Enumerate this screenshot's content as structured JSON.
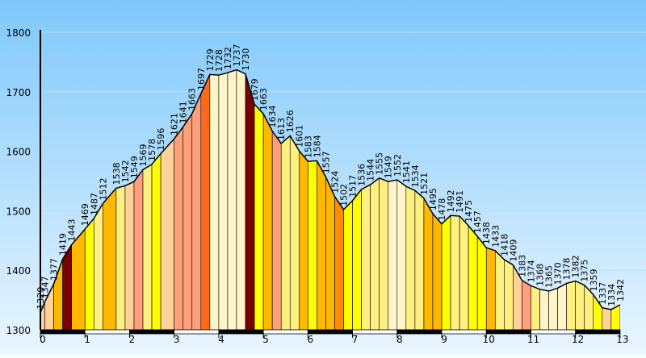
{
  "chart_data": {
    "type": "area",
    "title": "",
    "xlabel": "",
    "ylabel": "",
    "xlim": [
      0,
      13.4
    ],
    "ylim": [
      1300,
      1800
    ],
    "y_ticks": [
      "1300",
      "1400",
      "1500",
      "1600",
      "1700",
      "1800"
    ],
    "x_ticks": [
      "0",
      "1",
      "2",
      "3",
      "4",
      "5",
      "6",
      "7",
      "8",
      "9",
      "10",
      "11",
      "12",
      "13"
    ],
    "grid": true,
    "colors": {
      "background_top": "#7fc8fa",
      "background_bottom": "#eaf6ff",
      "gridline": "#b9dff5",
      "outline": "#000000",
      "palette": [
        "#ffd29a",
        "#ffb800",
        "#ff8c00",
        "#ffff00",
        "#fff080",
        "#fff5c8",
        "#ffa07a",
        "#ff6a1a",
        "#7a0000"
      ]
    },
    "points": [
      {
        "x": 0.0,
        "y": 1329,
        "label": "1329"
      },
      {
        "x": 0.1,
        "y": 1347,
        "label": "1347"
      },
      {
        "x": 0.3,
        "y": 1377,
        "label": "1377"
      },
      {
        "x": 0.5,
        "y": 1419,
        "label": "1419"
      },
      {
        "x": 0.7,
        "y": 1443,
        "label": "1443"
      },
      {
        "x": 1.0,
        "y": 1469,
        "label": "1469"
      },
      {
        "x": 1.2,
        "y": 1487,
        "label": "1487"
      },
      {
        "x": 1.4,
        "y": 1512,
        "label": "1512"
      },
      {
        "x": 1.7,
        "y": 1538,
        "label": "1538"
      },
      {
        "x": 1.9,
        "y": 1542,
        "label": "1542"
      },
      {
        "x": 2.1,
        "y": 1549,
        "label": "1549"
      },
      {
        "x": 2.3,
        "y": 1569,
        "label": "1569"
      },
      {
        "x": 2.5,
        "y": 1578,
        "label": "1578"
      },
      {
        "x": 2.7,
        "y": 1596,
        "label": "1596"
      },
      {
        "x": 3.0,
        "y": 1621,
        "label": "1621"
      },
      {
        "x": 3.2,
        "y": 1641,
        "label": "1641"
      },
      {
        "x": 3.4,
        "y": 1663,
        "label": "1663"
      },
      {
        "x": 3.6,
        "y": 1697,
        "label": "1697"
      },
      {
        "x": 3.8,
        "y": 1729,
        "label": "1729"
      },
      {
        "x": 4.0,
        "y": 1728,
        "label": "1728"
      },
      {
        "x": 4.2,
        "y": 1732,
        "label": "1732"
      },
      {
        "x": 4.4,
        "y": 1737,
        "label": "1737"
      },
      {
        "x": 4.6,
        "y": 1730,
        "label": "1730"
      },
      {
        "x": 4.8,
        "y": 1679,
        "label": "1679"
      },
      {
        "x": 5.0,
        "y": 1663,
        "label": "1663"
      },
      {
        "x": 5.2,
        "y": 1634,
        "label": "1634"
      },
      {
        "x": 5.4,
        "y": 1613,
        "label": "1613"
      },
      {
        "x": 5.6,
        "y": 1626,
        "label": "1626"
      },
      {
        "x": 5.8,
        "y": 1601,
        "label": "1601"
      },
      {
        "x": 6.0,
        "y": 1583,
        "label": "1583"
      },
      {
        "x": 6.2,
        "y": 1584,
        "label": "1584"
      },
      {
        "x": 6.4,
        "y": 1557,
        "label": "1557"
      },
      {
        "x": 6.6,
        "y": 1524,
        "label": "1524"
      },
      {
        "x": 6.8,
        "y": 1502,
        "label": "1502"
      },
      {
        "x": 7.0,
        "y": 1517,
        "label": "1517"
      },
      {
        "x": 7.2,
        "y": 1536,
        "label": "1536"
      },
      {
        "x": 7.4,
        "y": 1544,
        "label": "1544"
      },
      {
        "x": 7.6,
        "y": 1555,
        "label": "1555"
      },
      {
        "x": 7.8,
        "y": 1549,
        "label": "1549"
      },
      {
        "x": 8.0,
        "y": 1552,
        "label": "1552"
      },
      {
        "x": 8.2,
        "y": 1541,
        "label": "1541"
      },
      {
        "x": 8.4,
        "y": 1534,
        "label": "1534"
      },
      {
        "x": 8.6,
        "y": 1521,
        "label": "1521"
      },
      {
        "x": 8.8,
        "y": 1495,
        "label": "1495"
      },
      {
        "x": 9.0,
        "y": 1478,
        "label": "1478"
      },
      {
        "x": 9.2,
        "y": 1492,
        "label": "1492"
      },
      {
        "x": 9.4,
        "y": 1491,
        "label": "1491"
      },
      {
        "x": 9.6,
        "y": 1475,
        "label": "1475"
      },
      {
        "x": 9.8,
        "y": 1457,
        "label": "1457"
      },
      {
        "x": 10.0,
        "y": 1438,
        "label": "1438"
      },
      {
        "x": 10.2,
        "y": 1433,
        "label": "1433"
      },
      {
        "x": 10.4,
        "y": 1418,
        "label": "1418"
      },
      {
        "x": 10.6,
        "y": 1409,
        "label": "1409"
      },
      {
        "x": 10.8,
        "y": 1383,
        "label": "1383"
      },
      {
        "x": 11.0,
        "y": 1374,
        "label": "1374"
      },
      {
        "x": 11.2,
        "y": 1368,
        "label": "1368"
      },
      {
        "x": 11.4,
        "y": 1365,
        "label": "1365"
      },
      {
        "x": 11.6,
        "y": 1370,
        "label": "1370"
      },
      {
        "x": 11.8,
        "y": 1378,
        "label": "1378"
      },
      {
        "x": 12.0,
        "y": 1382,
        "label": "1382"
      },
      {
        "x": 12.2,
        "y": 1375,
        "label": "1375"
      },
      {
        "x": 12.4,
        "y": 1359,
        "label": "1359"
      },
      {
        "x": 12.6,
        "y": 1337,
        "label": "1337"
      },
      {
        "x": 12.8,
        "y": 1334,
        "label": "1334"
      },
      {
        "x": 13.0,
        "y": 1342,
        "label": "1342"
      }
    ],
    "segment_color_index": [
      0,
      0,
      1,
      8,
      1,
      3,
      4,
      1,
      4,
      0,
      6,
      4,
      3,
      0,
      6,
      6,
      6,
      7,
      5,
      5,
      5,
      5,
      8,
      3,
      1,
      6,
      4,
      4,
      1,
      3,
      1,
      1,
      2,
      3,
      3,
      4,
      4,
      4,
      5,
      5,
      4,
      4,
      1,
      1,
      3,
      4,
      4,
      3,
      3,
      1,
      4,
      4,
      0,
      6,
      4,
      5,
      5,
      5,
      4,
      4,
      4,
      3,
      0,
      3
    ]
  }
}
